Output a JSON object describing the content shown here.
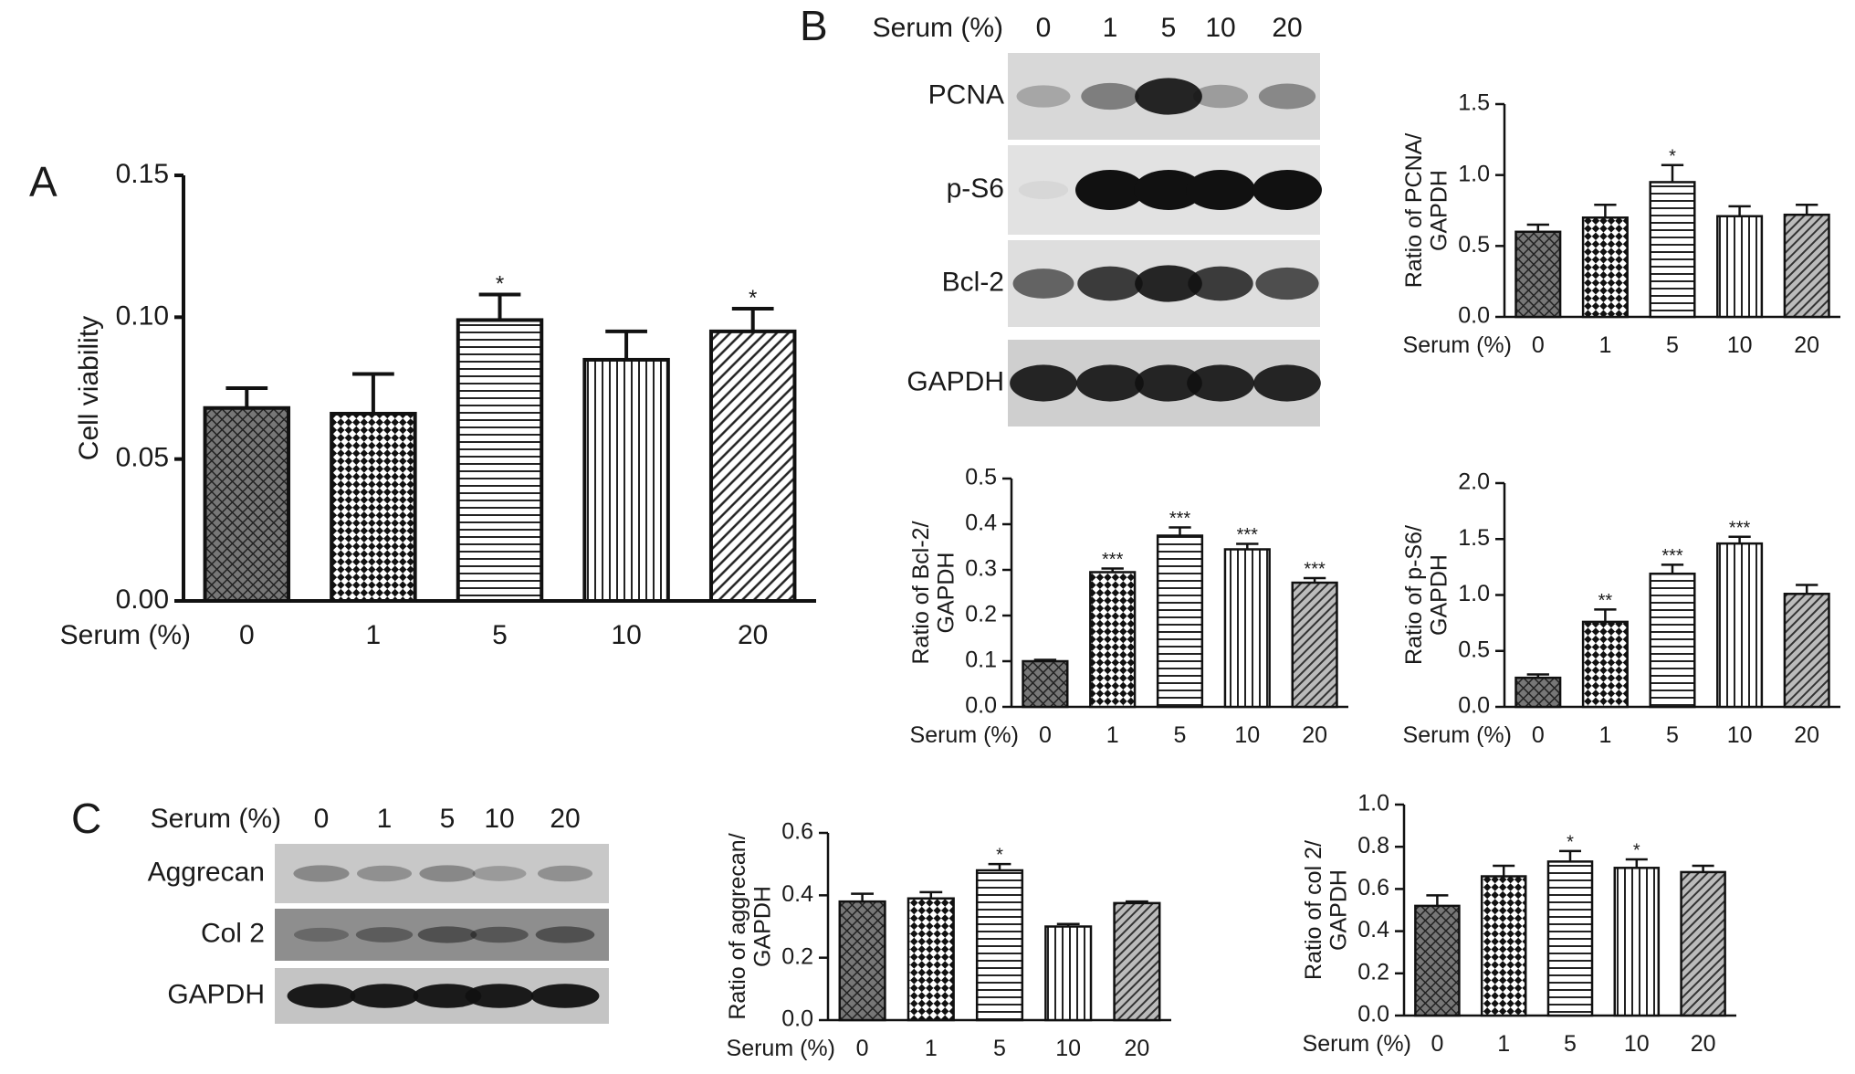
{
  "panels": [
    "A",
    "B",
    "C"
  ],
  "blots": [
    {
      "header": "Serum (%)",
      "lanes": [
        "0",
        "1",
        "5",
        "10",
        "20"
      ],
      "rows": [
        "PCNA",
        "p-S6",
        "Bcl-2",
        "GAPDH"
      ]
    },
    {
      "header": "Serum (%)",
      "lanes": [
        "0",
        "1",
        "5",
        "10",
        "20"
      ],
      "rows": [
        "Aggrecan",
        "Col 2",
        "GAPDH"
      ]
    }
  ],
  "chart_data": [
    {
      "type": "bar",
      "ylabel": [
        "Cell viability"
      ],
      "xlabel": "Serum (%)",
      "categories": [
        "0",
        "1",
        "5",
        "10",
        "20"
      ],
      "values": [
        0.068,
        0.066,
        0.099,
        0.085,
        0.095
      ],
      "errors": [
        0.007,
        0.014,
        0.009,
        0.01,
        0.008
      ],
      "annotations": [
        null,
        null,
        "*",
        null,
        "*"
      ],
      "ylim": [
        0,
        0.15
      ],
      "yticks": [
        {
          "value": 0,
          "label": "0.00"
        },
        {
          "value": 0.05,
          "label": "0.05"
        },
        {
          "value": 0.1,
          "label": "0.10"
        },
        {
          "value": 0.15,
          "label": "0.15"
        }
      ]
    },
    {
      "type": "bar",
      "ylabel": [
        "Ratio of PCNA/",
        "GAPDH"
      ],
      "xlabel": "Serum (%)",
      "categories": [
        "0",
        "1",
        "5",
        "10",
        "20"
      ],
      "values": [
        0.6,
        0.7,
        0.95,
        0.71,
        0.72
      ],
      "errors": [
        0.05,
        0.09,
        0.12,
        0.07,
        0.07
      ],
      "annotations": [
        null,
        null,
        "*",
        null,
        null
      ],
      "ylim": [
        0,
        1.5
      ],
      "yticks": [
        {
          "value": 0,
          "label": "0.0"
        },
        0.5,
        {
          "value": 1,
          "label": "1.0"
        },
        1.5
      ]
    },
    {
      "type": "bar",
      "ylabel": [
        "Ratio of Bcl-2/",
        "GAPDH"
      ],
      "xlabel": "Serum (%)",
      "categories": [
        "0",
        "1",
        "5",
        "10",
        "20"
      ],
      "values": [
        0.1,
        0.295,
        0.375,
        0.345,
        0.272
      ],
      "errors": [
        0.003,
        0.008,
        0.018,
        0.012,
        0.01
      ],
      "annotations": [
        null,
        "***",
        "***",
        "***",
        "***"
      ],
      "ylim": [
        0,
        0.5
      ],
      "yticks": [
        {
          "value": 0,
          "label": "0.0"
        },
        0.1,
        0.2,
        0.3,
        0.4,
        0.5
      ]
    },
    {
      "type": "bar",
      "ylabel": [
        "Ratio of p-S6/",
        "GAPDH"
      ],
      "xlabel": "Serum (%)",
      "categories": [
        "0",
        "1",
        "5",
        "10",
        "20"
      ],
      "values": [
        0.26,
        0.76,
        1.19,
        1.46,
        1.01
      ],
      "errors": [
        0.03,
        0.11,
        0.08,
        0.06,
        0.08
      ],
      "annotations": [
        null,
        "**",
        "***",
        "***",
        null
      ],
      "ylim": [
        0,
        2
      ],
      "yticks": [
        {
          "value": 0,
          "label": "0.0"
        },
        0.5,
        {
          "value": 1,
          "label": "1.0"
        },
        1.5,
        {
          "value": 2,
          "label": "2.0"
        }
      ]
    },
    {
      "type": "bar",
      "ylabel": [
        "Ratio of aggrecan/",
        "GAPDH"
      ],
      "xlabel": "Serum (%)",
      "categories": [
        "0",
        "1",
        "5",
        "10",
        "20"
      ],
      "values": [
        0.38,
        0.39,
        0.48,
        0.3,
        0.375
      ],
      "errors": [
        0.025,
        0.02,
        0.02,
        0.008,
        0.005
      ],
      "annotations": [
        null,
        null,
        "*",
        null,
        null
      ],
      "ylim": [
        0,
        0.6
      ],
      "yticks": [
        {
          "value": 0,
          "label": "0.0"
        },
        0.2,
        0.4,
        0.6
      ]
    },
    {
      "type": "bar",
      "ylabel": [
        "Ratio of col 2/",
        "GAPDH"
      ],
      "xlabel": "Serum (%)",
      "categories": [
        "0",
        "1",
        "5",
        "10",
        "20"
      ],
      "values": [
        0.52,
        0.66,
        0.73,
        0.7,
        0.68
      ],
      "errors": [
        0.05,
        0.05,
        0.05,
        0.04,
        0.03
      ],
      "annotations": [
        null,
        null,
        "*",
        "*",
        null
      ],
      "ylim": [
        0,
        1
      ],
      "yticks": [
        {
          "value": 0,
          "label": "0.0"
        },
        0.2,
        0.4,
        0.6,
        0.8,
        {
          "value": 1,
          "label": "1.0"
        }
      ]
    }
  ]
}
